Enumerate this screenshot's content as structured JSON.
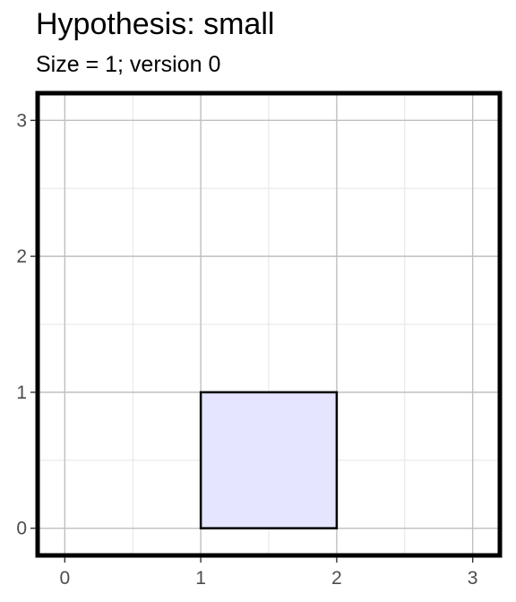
{
  "chart_data": {
    "type": "rect",
    "title": "Hypothesis: small",
    "subtitle": "Size = 1; version 0",
    "xlabel": "",
    "ylabel": "",
    "xlim": [
      -0.2,
      3.2
    ],
    "ylim": [
      -0.2,
      3.2
    ],
    "x_ticks": [
      0,
      1,
      2,
      3
    ],
    "y_ticks": [
      0,
      1,
      2,
      3
    ],
    "grid": true,
    "shapes": [
      {
        "xmin": 1,
        "xmax": 2,
        "ymin": 0,
        "ymax": 1,
        "fill": "#e5e5ff",
        "stroke": "#000000"
      }
    ],
    "colors": {
      "panel_border": "#000000",
      "grid_major": "#bfbfbf",
      "grid_minor": "#e6e6e6",
      "tick_label": "#4d4d4d"
    }
  }
}
